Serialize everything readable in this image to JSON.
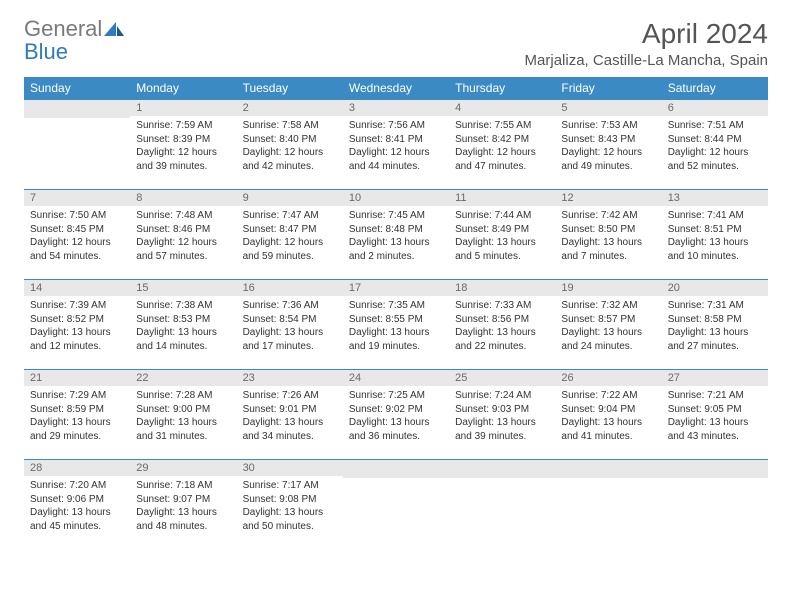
{
  "logo": {
    "word1": "General",
    "word2": "Blue"
  },
  "title": "April 2024",
  "location": "Marjaliza, Castille-La Mancha, Spain",
  "colors": {
    "header_bg": "#3b8ac4",
    "header_text": "#ffffff",
    "daybar_bg": "#e8e8e8",
    "daybar_text": "#6a6a6a",
    "body_text": "#333333",
    "rule": "#3b8ac4",
    "logo_gray": "#7a7a7a",
    "logo_blue": "#2e7bbf"
  },
  "weekdays": [
    "Sunday",
    "Monday",
    "Tuesday",
    "Wednesday",
    "Thursday",
    "Friday",
    "Saturday"
  ],
  "weeks": [
    [
      null,
      {
        "n": "1",
        "sr": "Sunrise: 7:59 AM",
        "ss": "Sunset: 8:39 PM",
        "d1": "Daylight: 12 hours",
        "d2": "and 39 minutes."
      },
      {
        "n": "2",
        "sr": "Sunrise: 7:58 AM",
        "ss": "Sunset: 8:40 PM",
        "d1": "Daylight: 12 hours",
        "d2": "and 42 minutes."
      },
      {
        "n": "3",
        "sr": "Sunrise: 7:56 AM",
        "ss": "Sunset: 8:41 PM",
        "d1": "Daylight: 12 hours",
        "d2": "and 44 minutes."
      },
      {
        "n": "4",
        "sr": "Sunrise: 7:55 AM",
        "ss": "Sunset: 8:42 PM",
        "d1": "Daylight: 12 hours",
        "d2": "and 47 minutes."
      },
      {
        "n": "5",
        "sr": "Sunrise: 7:53 AM",
        "ss": "Sunset: 8:43 PM",
        "d1": "Daylight: 12 hours",
        "d2": "and 49 minutes."
      },
      {
        "n": "6",
        "sr": "Sunrise: 7:51 AM",
        "ss": "Sunset: 8:44 PM",
        "d1": "Daylight: 12 hours",
        "d2": "and 52 minutes."
      }
    ],
    [
      {
        "n": "7",
        "sr": "Sunrise: 7:50 AM",
        "ss": "Sunset: 8:45 PM",
        "d1": "Daylight: 12 hours",
        "d2": "and 54 minutes."
      },
      {
        "n": "8",
        "sr": "Sunrise: 7:48 AM",
        "ss": "Sunset: 8:46 PM",
        "d1": "Daylight: 12 hours",
        "d2": "and 57 minutes."
      },
      {
        "n": "9",
        "sr": "Sunrise: 7:47 AM",
        "ss": "Sunset: 8:47 PM",
        "d1": "Daylight: 12 hours",
        "d2": "and 59 minutes."
      },
      {
        "n": "10",
        "sr": "Sunrise: 7:45 AM",
        "ss": "Sunset: 8:48 PM",
        "d1": "Daylight: 13 hours",
        "d2": "and 2 minutes."
      },
      {
        "n": "11",
        "sr": "Sunrise: 7:44 AM",
        "ss": "Sunset: 8:49 PM",
        "d1": "Daylight: 13 hours",
        "d2": "and 5 minutes."
      },
      {
        "n": "12",
        "sr": "Sunrise: 7:42 AM",
        "ss": "Sunset: 8:50 PM",
        "d1": "Daylight: 13 hours",
        "d2": "and 7 minutes."
      },
      {
        "n": "13",
        "sr": "Sunrise: 7:41 AM",
        "ss": "Sunset: 8:51 PM",
        "d1": "Daylight: 13 hours",
        "d2": "and 10 minutes."
      }
    ],
    [
      {
        "n": "14",
        "sr": "Sunrise: 7:39 AM",
        "ss": "Sunset: 8:52 PM",
        "d1": "Daylight: 13 hours",
        "d2": "and 12 minutes."
      },
      {
        "n": "15",
        "sr": "Sunrise: 7:38 AM",
        "ss": "Sunset: 8:53 PM",
        "d1": "Daylight: 13 hours",
        "d2": "and 14 minutes."
      },
      {
        "n": "16",
        "sr": "Sunrise: 7:36 AM",
        "ss": "Sunset: 8:54 PM",
        "d1": "Daylight: 13 hours",
        "d2": "and 17 minutes."
      },
      {
        "n": "17",
        "sr": "Sunrise: 7:35 AM",
        "ss": "Sunset: 8:55 PM",
        "d1": "Daylight: 13 hours",
        "d2": "and 19 minutes."
      },
      {
        "n": "18",
        "sr": "Sunrise: 7:33 AM",
        "ss": "Sunset: 8:56 PM",
        "d1": "Daylight: 13 hours",
        "d2": "and 22 minutes."
      },
      {
        "n": "19",
        "sr": "Sunrise: 7:32 AM",
        "ss": "Sunset: 8:57 PM",
        "d1": "Daylight: 13 hours",
        "d2": "and 24 minutes."
      },
      {
        "n": "20",
        "sr": "Sunrise: 7:31 AM",
        "ss": "Sunset: 8:58 PM",
        "d1": "Daylight: 13 hours",
        "d2": "and 27 minutes."
      }
    ],
    [
      {
        "n": "21",
        "sr": "Sunrise: 7:29 AM",
        "ss": "Sunset: 8:59 PM",
        "d1": "Daylight: 13 hours",
        "d2": "and 29 minutes."
      },
      {
        "n": "22",
        "sr": "Sunrise: 7:28 AM",
        "ss": "Sunset: 9:00 PM",
        "d1": "Daylight: 13 hours",
        "d2": "and 31 minutes."
      },
      {
        "n": "23",
        "sr": "Sunrise: 7:26 AM",
        "ss": "Sunset: 9:01 PM",
        "d1": "Daylight: 13 hours",
        "d2": "and 34 minutes."
      },
      {
        "n": "24",
        "sr": "Sunrise: 7:25 AM",
        "ss": "Sunset: 9:02 PM",
        "d1": "Daylight: 13 hours",
        "d2": "and 36 minutes."
      },
      {
        "n": "25",
        "sr": "Sunrise: 7:24 AM",
        "ss": "Sunset: 9:03 PM",
        "d1": "Daylight: 13 hours",
        "d2": "and 39 minutes."
      },
      {
        "n": "26",
        "sr": "Sunrise: 7:22 AM",
        "ss": "Sunset: 9:04 PM",
        "d1": "Daylight: 13 hours",
        "d2": "and 41 minutes."
      },
      {
        "n": "27",
        "sr": "Sunrise: 7:21 AM",
        "ss": "Sunset: 9:05 PM",
        "d1": "Daylight: 13 hours",
        "d2": "and 43 minutes."
      }
    ],
    [
      {
        "n": "28",
        "sr": "Sunrise: 7:20 AM",
        "ss": "Sunset: 9:06 PM",
        "d1": "Daylight: 13 hours",
        "d2": "and 45 minutes."
      },
      {
        "n": "29",
        "sr": "Sunrise: 7:18 AM",
        "ss": "Sunset: 9:07 PM",
        "d1": "Daylight: 13 hours",
        "d2": "and 48 minutes."
      },
      {
        "n": "30",
        "sr": "Sunrise: 7:17 AM",
        "ss": "Sunset: 9:08 PM",
        "d1": "Daylight: 13 hours",
        "d2": "and 50 minutes."
      },
      null,
      null,
      null,
      null
    ]
  ]
}
